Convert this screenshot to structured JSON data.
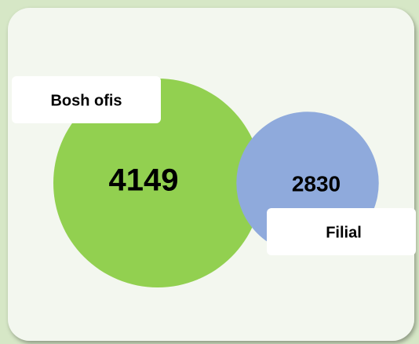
{
  "chart_data": {
    "type": "bubble",
    "categories": [
      "Bosh ofis",
      "Filial"
    ],
    "values": [
      4149,
      2830
    ],
    "colors": [
      "#92d050",
      "#8faadc"
    ]
  }
}
